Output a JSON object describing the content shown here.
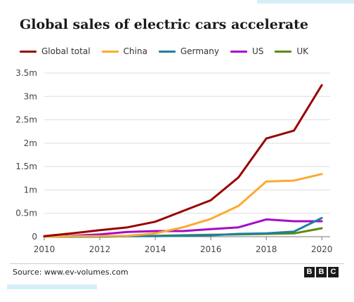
{
  "title": "Global sales of electric cars accelerate",
  "source": "Source: www.ev-volumes.com",
  "logo": {
    "letters": [
      "B",
      "B",
      "C"
    ]
  },
  "chart_data": {
    "type": "line",
    "title": "Global sales of electric cars accelerate",
    "xlabel": "",
    "ylabel": "",
    "x": [
      2010,
      2011,
      2012,
      2013,
      2014,
      2015,
      2016,
      2017,
      2018,
      2019,
      2020
    ],
    "xticks": [
      2010,
      2012,
      2014,
      2016,
      2018,
      2020
    ],
    "xtick_labels": [
      "2010",
      "2012",
      "2014",
      "2016",
      "2018",
      "2020"
    ],
    "yticks": [
      0,
      0.5,
      1,
      1.5,
      2,
      2.5,
      3,
      3.5
    ],
    "ytick_labels": [
      "0",
      "0.5m",
      "1m",
      "1.5m",
      "2m",
      "2.5m",
      "3m",
      "3.5m"
    ],
    "xlim": [
      2010,
      2020.3
    ],
    "ylim": [
      0,
      3.5
    ],
    "grid": "horizontal",
    "legend_position": "top",
    "series": [
      {
        "name": "Global total",
        "color": "#990000",
        "values": [
          0.01,
          0.07,
          0.14,
          0.2,
          0.32,
          0.55,
          0.78,
          1.27,
          2.1,
          2.27,
          3.24
        ]
      },
      {
        "name": "China",
        "color": "#fcaa2f",
        "values": [
          0.0,
          0.01,
          0.01,
          0.02,
          0.07,
          0.2,
          0.38,
          0.66,
          1.18,
          1.2,
          1.34
        ]
      },
      {
        "name": "Germany",
        "color": "#1e80a0",
        "values": [
          0.0,
          0.0,
          0.0,
          0.01,
          0.01,
          0.02,
          0.03,
          0.06,
          0.07,
          0.11,
          0.4
        ]
      },
      {
        "name": "US",
        "color": "#a50ac9",
        "values": [
          0.0,
          0.02,
          0.05,
          0.1,
          0.12,
          0.12,
          0.16,
          0.2,
          0.37,
          0.33,
          0.33
        ]
      },
      {
        "name": "UK",
        "color": "#588c0e",
        "values": [
          0.0,
          0.0,
          0.0,
          0.01,
          0.02,
          0.03,
          0.04,
          0.05,
          0.06,
          0.07,
          0.18
        ]
      }
    ]
  }
}
